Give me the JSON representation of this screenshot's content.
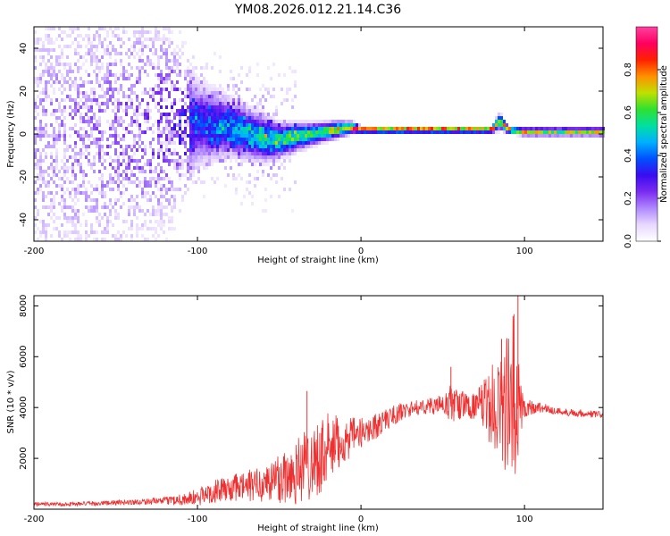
{
  "title": "YM08.2026.012.21.14.C36",
  "colors": {
    "snr_line": "#ee3030",
    "axis": "#000000",
    "colormap": [
      "#ffffff",
      "#e8d8ff",
      "#b088ff",
      "#7a2cf0",
      "#3a0cf0",
      "#0050ff",
      "#00b0ff",
      "#00e0a0",
      "#30e030",
      "#c0e000",
      "#ff9000",
      "#ff2000",
      "#ff0060",
      "#ff40a0"
    ]
  },
  "chart_data": [
    {
      "type": "heatmap",
      "title": "",
      "xlabel": "Height of straight line (km)",
      "ylabel": "Frequency (Hz)",
      "xlim": [
        -200,
        148
      ],
      "ylim": [
        -50,
        50
      ],
      "xticks": [
        -200,
        -100,
        0,
        100
      ],
      "yticks": [
        -40,
        -20,
        0,
        20,
        40
      ],
      "colorbar": {
        "label": "Normalized spectral amplitude",
        "range": [
          0,
          1
        ],
        "ticks": [
          0.0,
          0.2,
          0.4,
          0.6,
          0.8
        ]
      },
      "dominant_band": {
        "x": [
          -200,
          -150,
          -120,
          -100,
          -80,
          -60,
          -50,
          -30,
          -15,
          -5,
          0,
          20,
          60,
          80,
          85,
          90,
          100,
          120,
          148
        ],
        "freq": [
          0,
          2,
          4,
          5,
          3,
          -2,
          -3,
          0,
          2,
          3,
          2,
          2,
          2,
          2,
          6,
          2,
          1,
          1,
          1
        ],
        "amplitude": [
          0.15,
          0.2,
          0.25,
          0.35,
          0.45,
          0.55,
          0.6,
          0.65,
          0.75,
          0.85,
          0.95,
          0.95,
          0.95,
          0.95,
          0.7,
          0.95,
          0.75,
          0.7,
          0.75
        ],
        "spread_hz": [
          50,
          45,
          35,
          15,
          10,
          8,
          6,
          4,
          3,
          2,
          1.2,
          1.2,
          1.2,
          1.2,
          3,
          1.2,
          1.5,
          1.5,
          1.5
        ]
      }
    },
    {
      "type": "line",
      "title": "",
      "xlabel": "Height of straight line (km)",
      "ylabel": "SNR (10 * v/v)",
      "xlim": [
        -200,
        148
      ],
      "ylim": [
        0,
        8400
      ],
      "xticks": [
        -200,
        -100,
        0,
        100
      ],
      "yticks": [
        2000,
        4000,
        6000,
        8000
      ],
      "series": [
        {
          "name": "SNR",
          "x": [
            -200,
            -180,
            -160,
            -140,
            -120,
            -100,
            -90,
            -80,
            -70,
            -60,
            -50,
            -40,
            -30,
            -20,
            -10,
            0,
            10,
            20,
            30,
            40,
            50,
            55,
            60,
            70,
            80,
            85,
            90,
            93,
            95,
            97,
            100,
            110,
            120,
            130,
            140,
            148
          ],
          "base": [
            200,
            200,
            230,
            280,
            330,
            450,
            700,
            800,
            900,
            1000,
            1200,
            1500,
            1900,
            2300,
            2700,
            3000,
            3300,
            3700,
            3950,
            4050,
            4100,
            4150,
            4100,
            4050,
            4050,
            4100,
            4050,
            4000,
            3900,
            4000,
            4000,
            4000,
            3850,
            3800,
            3750,
            3700
          ],
          "noise_amp": [
            80,
            80,
            90,
            110,
            140,
            350,
            450,
            500,
            650,
            700,
            1100,
            1400,
            1500,
            1500,
            900,
            600,
            500,
            400,
            300,
            300,
            400,
            800,
            600,
            500,
            1600,
            2200,
            3000,
            4000,
            3600,
            1500,
            400,
            200,
            150,
            150,
            150,
            150
          ],
          "peaks": [
            {
              "x": -33,
              "y": 4650
            },
            {
              "x": -24,
              "y": 3200
            },
            {
              "x": 55,
              "y": 5600
            },
            {
              "x": 86,
              "y": 6700
            },
            {
              "x": 93,
              "y": 7600
            },
            {
              "x": 96,
              "y": 8400
            }
          ]
        }
      ]
    }
  ]
}
